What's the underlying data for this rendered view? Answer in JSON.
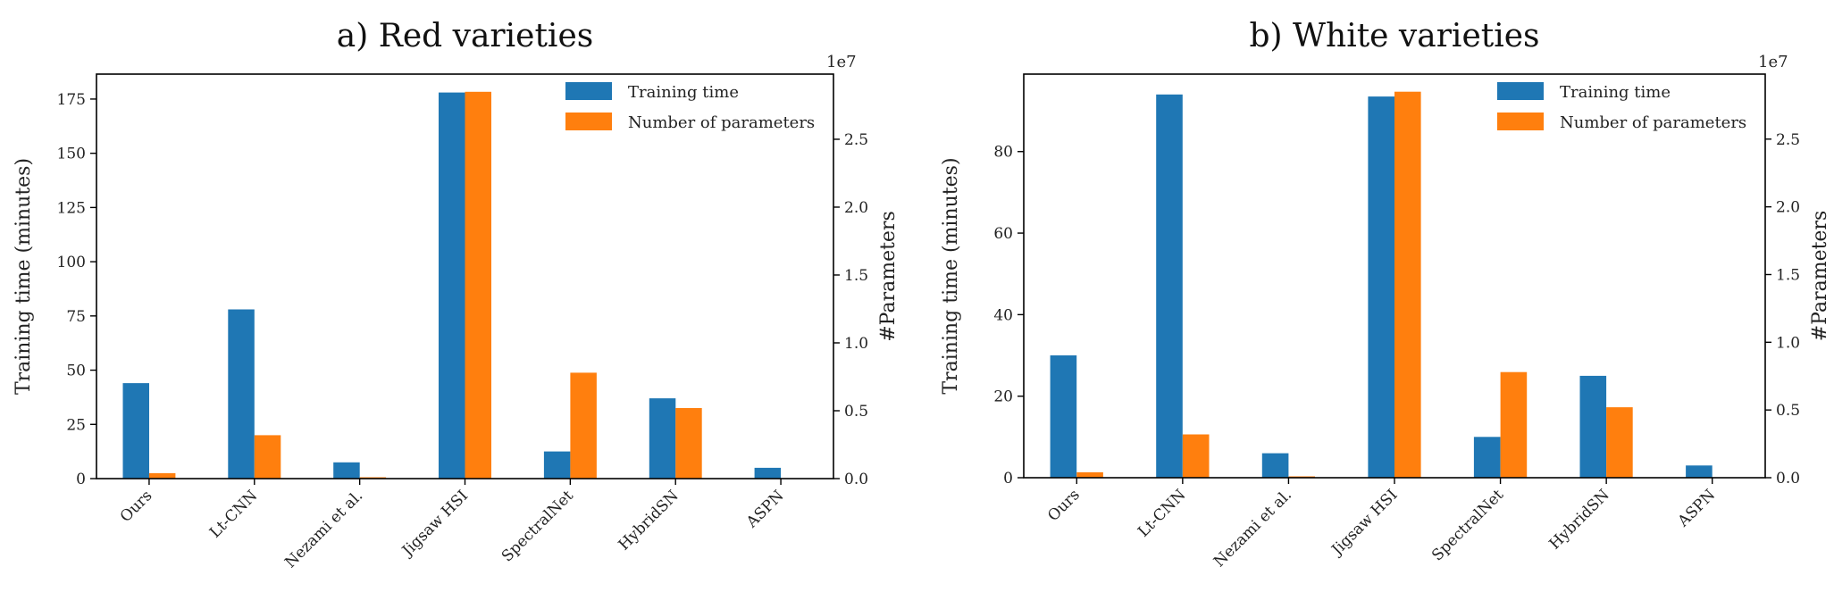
{
  "chart_data": [
    {
      "type": "bar",
      "title": "a) Red varieties",
      "categories": [
        "Ours",
        "Lt-CNN",
        "Nezami et al.",
        "Jigsaw HSI",
        "SpectralNet",
        "HybridSN",
        "ASPN"
      ],
      "series": [
        {
          "name": "Training time",
          "axis": "left",
          "color": "#1f77b4",
          "values": [
            44,
            78,
            7.5,
            178,
            12.5,
            37,
            5
          ]
        },
        {
          "name": "Number of parameters",
          "axis": "right",
          "color": "#ff7f0e",
          "values": [
            400000,
            3200000,
            100000,
            28500000,
            7800000,
            5200000,
            20000
          ]
        }
      ],
      "ylabel": "Training time (minutes)",
      "y2label": "#Parameters",
      "y2_exponent": "1e7",
      "ylim": [
        0,
        186.5
      ],
      "y2lim": [
        0,
        29800000
      ],
      "yticks": [
        0,
        25,
        50,
        75,
        100,
        125,
        150,
        175
      ],
      "y2ticks": [
        0,
        5000000,
        10000000,
        15000000,
        20000000,
        25000000
      ],
      "y2tick_labels": [
        "0.0",
        "0.5",
        "1.0",
        "1.5",
        "2.0",
        "2.5"
      ],
      "grid": false,
      "legend": "top-right"
    },
    {
      "type": "bar",
      "title": "b) White varieties",
      "categories": [
        "Ours",
        "Lt-CNN",
        "Nezami et al.",
        "Jigsaw HSI",
        "SpectralNet",
        "HybridSN",
        "ASPN"
      ],
      "series": [
        {
          "name": "Training time",
          "axis": "left",
          "color": "#1f77b4",
          "values": [
            30,
            94,
            6,
            93.5,
            10,
            25,
            3
          ]
        },
        {
          "name": "Number of parameters",
          "axis": "right",
          "color": "#ff7f0e",
          "values": [
            400000,
            3200000,
            100000,
            28500000,
            7800000,
            5200000,
            20000
          ]
        }
      ],
      "ylabel": "Training time (minutes)",
      "y2label": "#Parameters",
      "y2_exponent": "1e7",
      "ylim": [
        0,
        99
      ],
      "y2lim": [
        0,
        29800000
      ],
      "yticks": [
        0,
        20,
        40,
        60,
        80
      ],
      "y2ticks": [
        0,
        5000000,
        10000000,
        15000000,
        20000000,
        25000000
      ],
      "y2tick_labels": [
        "0.0",
        "0.5",
        "1.0",
        "1.5",
        "2.0",
        "2.5"
      ],
      "grid": false,
      "legend": "top-right"
    }
  ]
}
